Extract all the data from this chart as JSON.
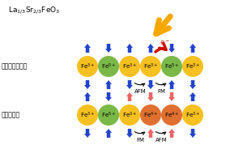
{
  "bg_color": "#ffffff",
  "formula": "La$_{1/3}$Sr$_{2/3}$FeO$_3$",
  "label_top": "レーザー光照射",
  "label_bottom": "電荷再配置",
  "top_ions": [
    "Fe3+",
    "Fe5+",
    "Fe3+",
    "Fe3+",
    "Fe5+",
    "Fe3+"
  ],
  "top_colors": [
    "#f5c020",
    "#7ab848",
    "#f5c020",
    "#f5c020",
    "#7ab848",
    "#f5c020"
  ],
  "top_spin_up": [
    true,
    false,
    true,
    true,
    false,
    true
  ],
  "top_spin_colors_up": [
    "#2244cc",
    "#2244cc",
    "#2244cc",
    "#2244cc",
    "#2244cc",
    "#2244cc"
  ],
  "top_spin_colors_dn": [
    "#2244cc",
    "#2244cc",
    "#2244cc",
    "#2244cc",
    "#2244cc",
    "#2244cc"
  ],
  "bot_ions": [
    "Fe3+",
    "Fe5+",
    "Fe3+",
    "Fe4+",
    "Fe4+",
    "Fe3+"
  ],
  "bot_colors": [
    "#f5c020",
    "#7ab848",
    "#f5c020",
    "#e07030",
    "#e07030",
    "#f5c020"
  ],
  "bot_spin_up": [
    true,
    false,
    true,
    false,
    false,
    true
  ],
  "bot_spin_colors_up": [
    "#2244cc",
    "#2244cc",
    "#ee6666",
    "#ee6666",
    "#2244cc",
    "#2244cc"
  ],
  "bot_spin_colors_dn": [
    "#2244cc",
    "#2244cc",
    "#2244cc",
    "#ee6666",
    "#ee6666",
    "#2244cc"
  ],
  "laser_color": "#f5a800",
  "electron_color": "#cc1100",
  "afm_fm_top": [
    "AFM",
    "FM"
  ],
  "afm_fm_bot": [
    "FM",
    "AFM"
  ]
}
